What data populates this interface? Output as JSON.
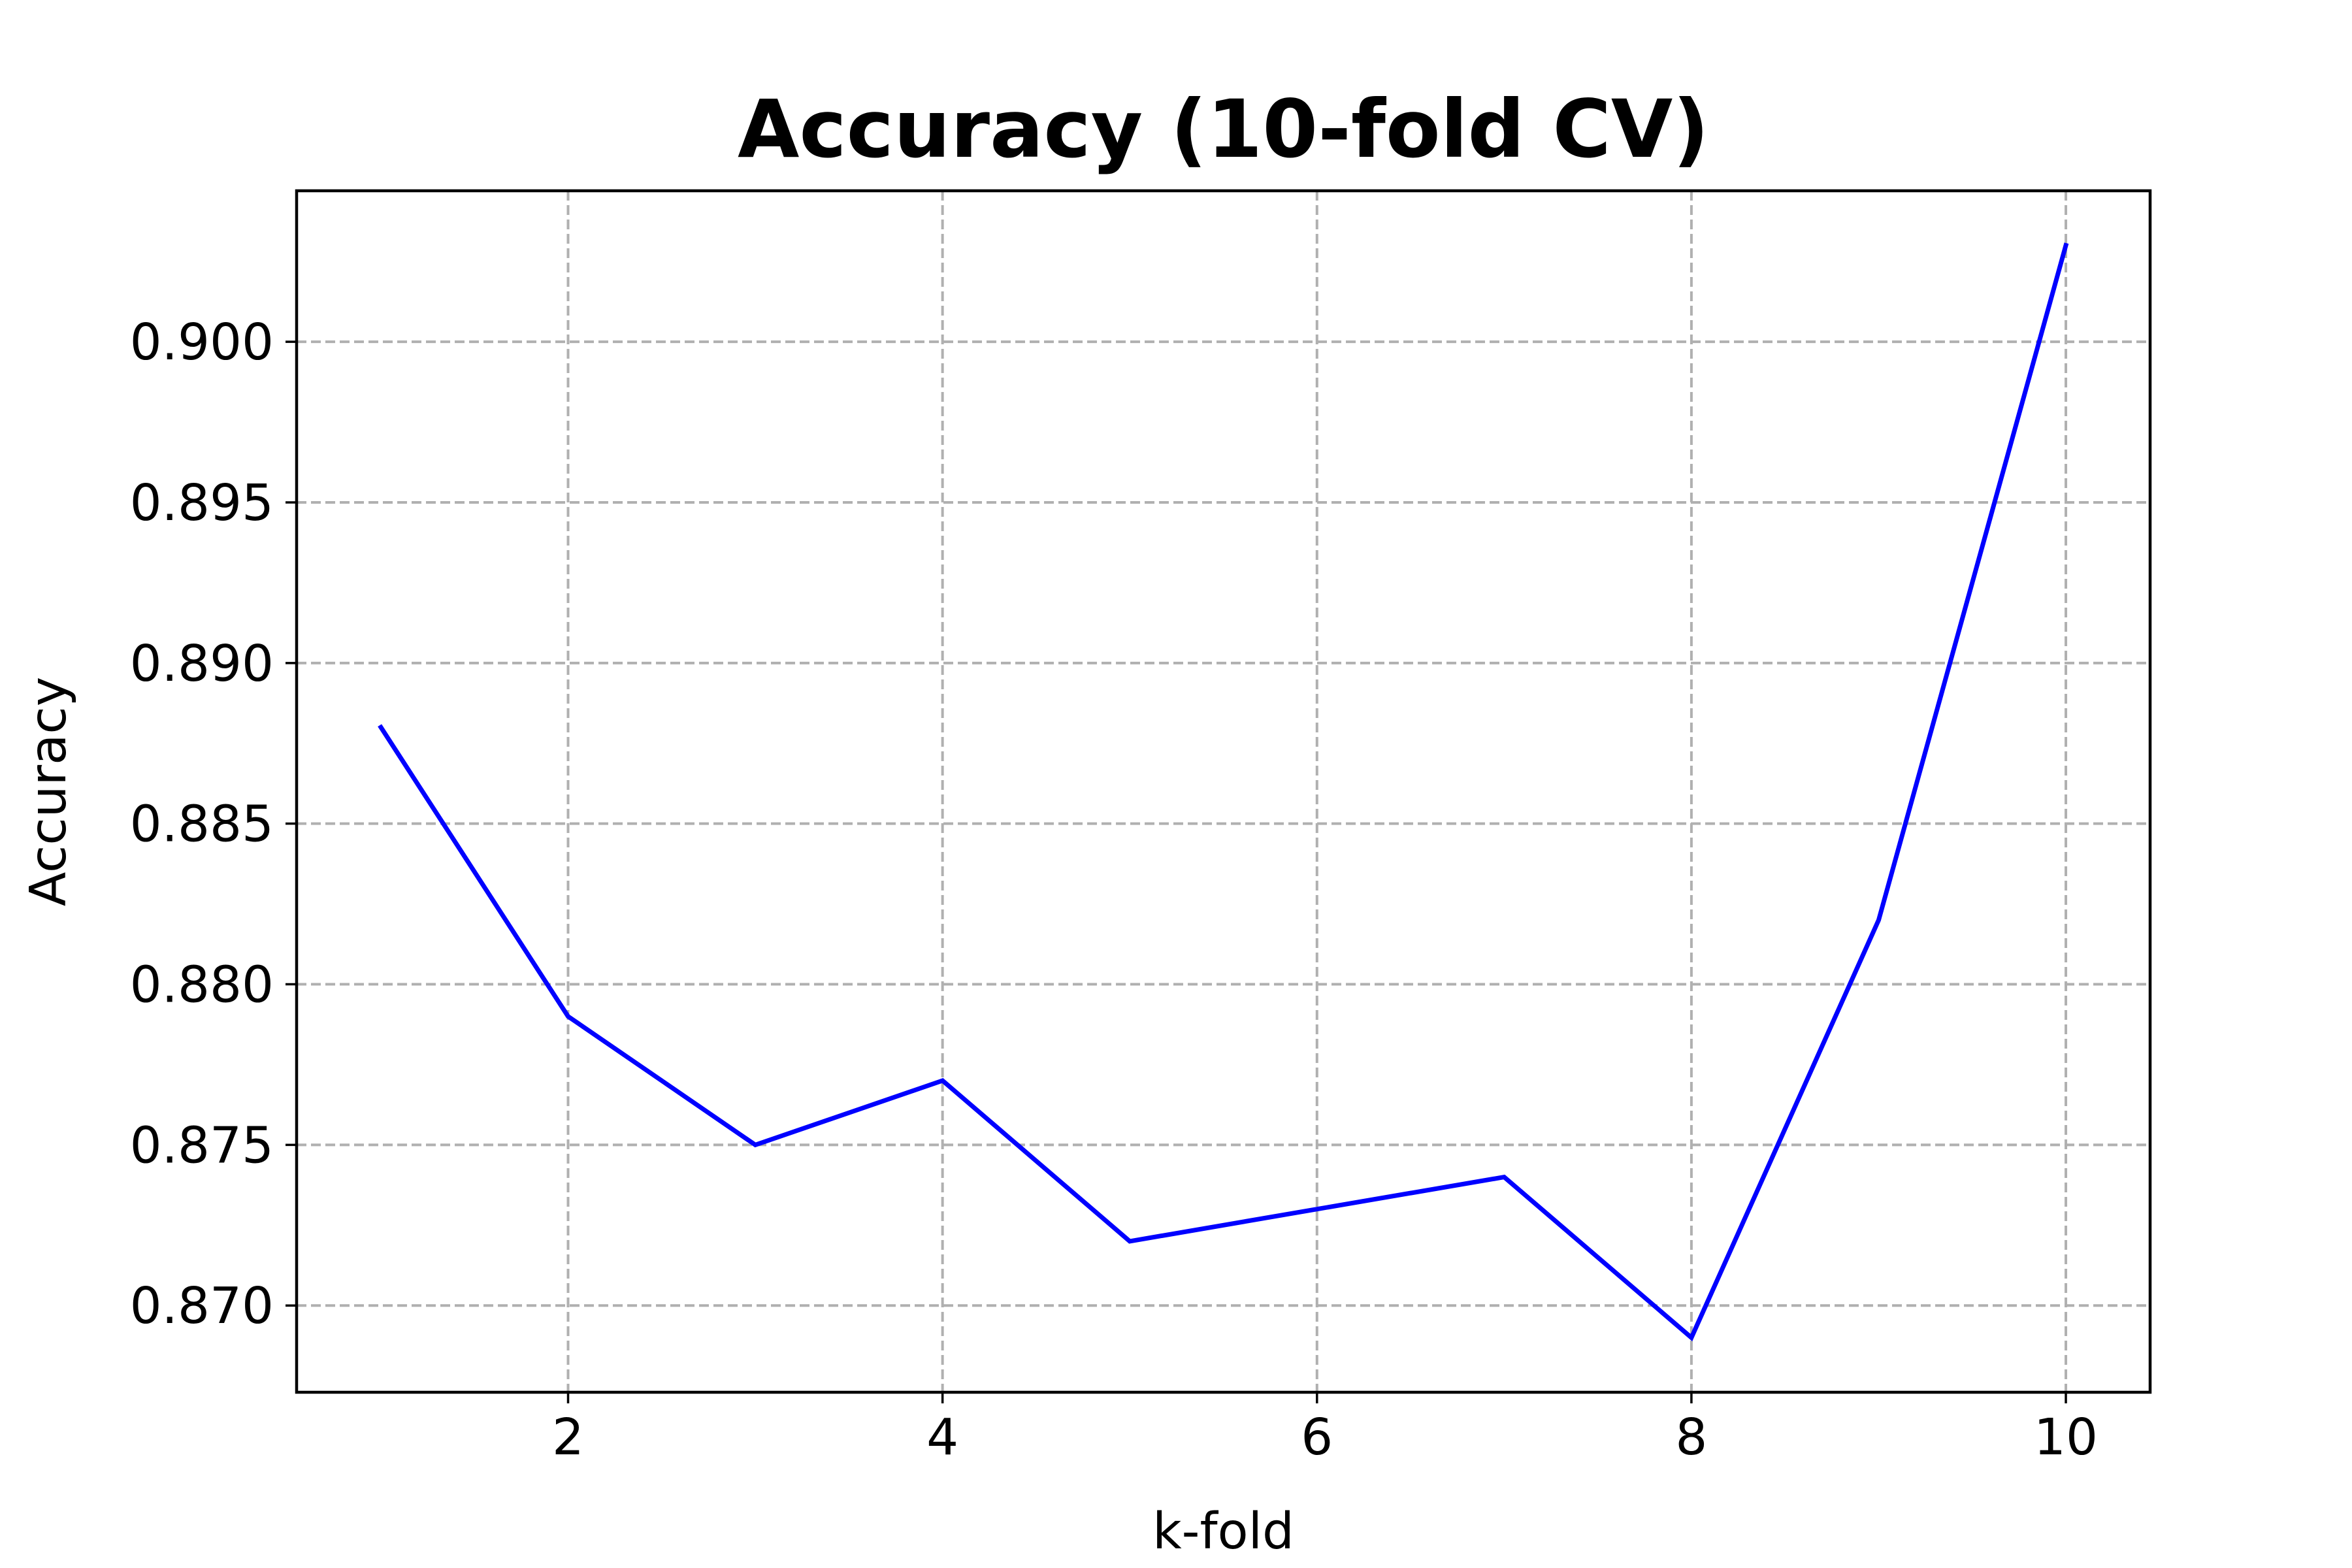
{
  "chart_data": {
    "type": "line",
    "title": "Accuracy (10-fold CV)",
    "xlabel": "k-fold",
    "ylabel": "Accuracy",
    "xlim": [
      0.55,
      10.45
    ],
    "ylim": [
      0.8673,
      0.9047
    ],
    "x_ticks": [
      2,
      4,
      6,
      8,
      10
    ],
    "x_tick_labels": [
      "2",
      "4",
      "6",
      "8",
      "10"
    ],
    "y_ticks": [
      0.87,
      0.875,
      0.88,
      0.885,
      0.89,
      0.895,
      0.9
    ],
    "y_tick_labels": [
      "0.870",
      "0.875",
      "0.880",
      "0.885",
      "0.890",
      "0.895",
      "0.900"
    ],
    "grid": true,
    "series": [
      {
        "color": "#0000ff",
        "x": [
          1,
          2,
          3,
          4,
          5,
          6,
          7,
          8,
          9,
          10
        ],
        "values": [
          0.888,
          0.879,
          0.875,
          0.877,
          0.872,
          0.873,
          0.874,
          0.869,
          0.882,
          0.903
        ]
      }
    ]
  }
}
